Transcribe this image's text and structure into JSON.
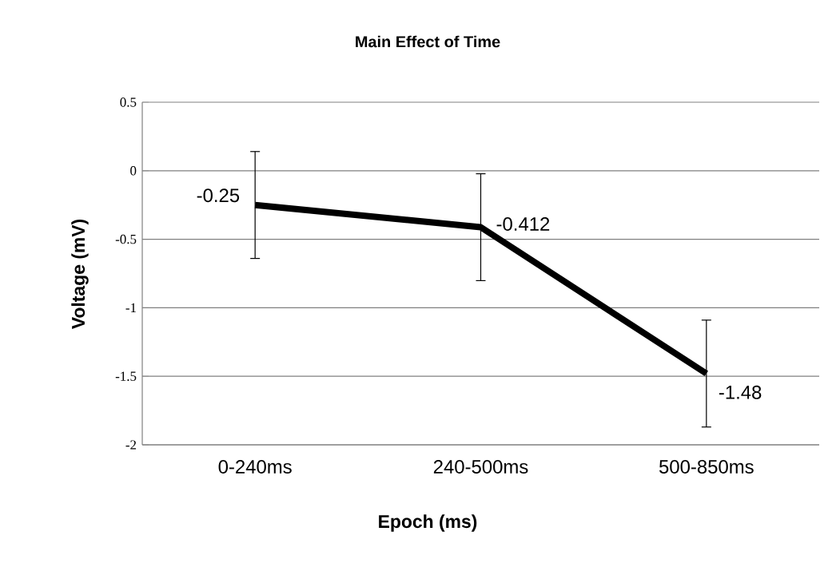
{
  "chart_data": {
    "type": "line",
    "title": "Main Effect of Time",
    "xlabel": "Epoch (ms)",
    "ylabel": "Voltage (mV)",
    "categories": [
      "0-240ms",
      "240-500ms",
      "500-850ms"
    ],
    "values": [
      -0.25,
      -0.412,
      -1.48
    ],
    "errors": [
      0.39,
      0.39,
      0.39
    ],
    "color": "#000000",
    "ylim": [
      -2,
      0.5
    ],
    "yticks": [
      -2,
      -1.5,
      -1,
      -0.5,
      0,
      0.5
    ],
    "grid": "y",
    "marker": "none",
    "line_style": "solid",
    "data_labels": true
  }
}
